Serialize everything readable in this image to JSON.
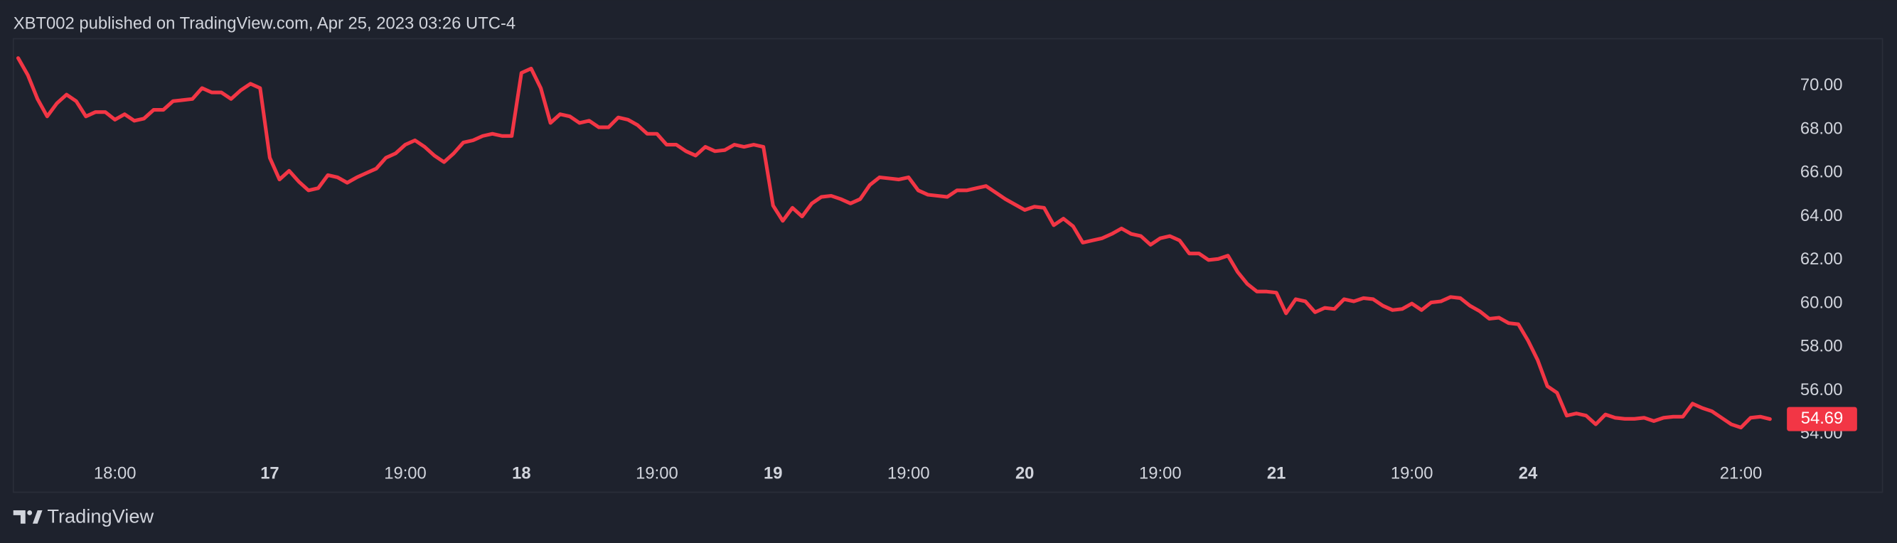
{
  "chart_data": {
    "type": "line",
    "title": "XBT002 published on TradingView.com, Apr 25, 2023 03:26 UTC-4",
    "brand": "TradingView",
    "categories": [
      null,
      null,
      null,
      null,
      null,
      null,
      null,
      null,
      null,
      null,
      "18:00",
      null,
      null,
      null,
      null,
      null,
      null,
      null,
      null,
      null,
      null,
      null,
      null,
      null,
      null,
      null,
      "17",
      null,
      null,
      null,
      null,
      null,
      null,
      null,
      null,
      null,
      null,
      null,
      null,
      null,
      "19:00",
      null,
      null,
      null,
      null,
      null,
      null,
      null,
      null,
      null,
      null,
      null,
      "18",
      null,
      null,
      null,
      null,
      null,
      null,
      null,
      null,
      null,
      null,
      null,
      null,
      null,
      "19:00",
      null,
      null,
      null,
      null,
      null,
      null,
      null,
      null,
      null,
      null,
      null,
      "19",
      null,
      null,
      null,
      null,
      null,
      null,
      null,
      null,
      null,
      null,
      null,
      null,
      null,
      "19:00",
      null,
      null,
      null,
      null,
      null,
      null,
      null,
      null,
      null,
      null,
      null,
      "20",
      null,
      null,
      null,
      null,
      null,
      null,
      null,
      null,
      null,
      null,
      null,
      null,
      null,
      "19:00",
      null,
      null,
      null,
      null,
      null,
      null,
      null,
      null,
      null,
      null,
      null,
      "21",
      null,
      null,
      null,
      null,
      null,
      null,
      null,
      null,
      null,
      null,
      null,
      null,
      null,
      "19:00",
      null,
      null,
      null,
      null,
      null,
      null,
      null,
      null,
      null,
      null,
      null,
      "24",
      null,
      null,
      null,
      null,
      null,
      null,
      null,
      null,
      null,
      null,
      null,
      null,
      null,
      null,
      null,
      null,
      null,
      null,
      null,
      null,
      null,
      "21:00",
      null,
      null,
      null
    ],
    "series": [
      {
        "color": "#f23645",
        "values": [
          71.28,
          70.5,
          69.4,
          68.6,
          69.2,
          69.6,
          69.3,
          68.6,
          68.8,
          68.8,
          68.45,
          68.7,
          68.4,
          68.5,
          68.9,
          68.9,
          69.3,
          69.35,
          69.4,
          69.9,
          69.7,
          69.7,
          69.4,
          69.8,
          70.1,
          69.9,
          66.7,
          65.7,
          66.1,
          65.6,
          65.2,
          65.3,
          65.9,
          65.8,
          65.55,
          65.8,
          66.0,
          66.2,
          66.7,
          66.9,
          67.3,
          67.5,
          67.2,
          66.8,
          66.5,
          66.9,
          67.4,
          67.5,
          67.7,
          67.8,
          67.7,
          67.7,
          70.6,
          70.8,
          69.9,
          68.3,
          68.7,
          68.6,
          68.3,
          68.4,
          68.1,
          68.1,
          68.55,
          68.45,
          68.2,
          67.8,
          67.8,
          67.3,
          67.3,
          67.0,
          66.8,
          67.2,
          67.0,
          67.05,
          67.3,
          67.2,
          67.3,
          67.2,
          64.5,
          63.8,
          64.4,
          64.0,
          64.6,
          64.9,
          64.95,
          64.8,
          64.6,
          64.8,
          65.45,
          65.8,
          65.75,
          65.7,
          65.8,
          65.2,
          65.0,
          64.95,
          64.9,
          65.2,
          65.2,
          65.3,
          65.4,
          65.1,
          64.8,
          64.55,
          64.3,
          64.45,
          64.4,
          63.6,
          63.9,
          63.55,
          62.8,
          62.9,
          63.0,
          63.2,
          63.45,
          63.2,
          63.1,
          62.7,
          63.0,
          63.1,
          62.9,
          62.3,
          62.3,
          62.0,
          62.05,
          62.2,
          61.45,
          60.9,
          60.55,
          60.55,
          60.5,
          59.55,
          60.2,
          60.1,
          59.6,
          59.8,
          59.75,
          60.2,
          60.1,
          60.25,
          60.2,
          59.9,
          59.7,
          59.75,
          60.0,
          59.7,
          60.05,
          60.1,
          60.3,
          60.25,
          59.9,
          59.65,
          59.3,
          59.35,
          59.1,
          59.05,
          58.3,
          57.4,
          56.2,
          55.9,
          54.85,
          54.95,
          54.85,
          54.45,
          54.9,
          54.75,
          54.7,
          54.7,
          54.75,
          54.6,
          54.75,
          54.8,
          54.8,
          55.4,
          55.2,
          55.05,
          54.75,
          54.45,
          54.3,
          54.75,
          54.8,
          54.69
        ]
      }
    ],
    "ylim": [
      51.33,
      72.17
    ],
    "yticks": [
      {
        "value": 54,
        "label": "54.00"
      },
      {
        "value": 56,
        "label": "56.00"
      },
      {
        "value": 58,
        "label": "58.00"
      },
      {
        "value": 60,
        "label": "60.00"
      },
      {
        "value": 62,
        "label": "62.00"
      },
      {
        "value": 64,
        "label": "64.00"
      },
      {
        "value": 66,
        "label": "66.00"
      },
      {
        "value": 68,
        "label": "68.00"
      },
      {
        "value": 70,
        "label": "70.00"
      }
    ],
    "grid": false
  }
}
